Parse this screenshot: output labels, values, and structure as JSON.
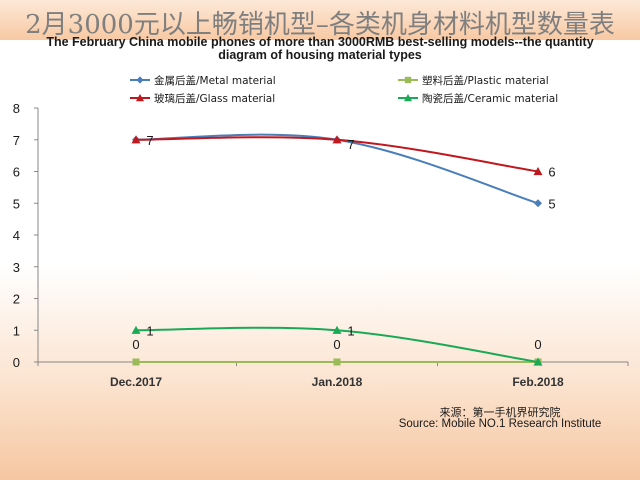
{
  "header": {
    "title": "2月3000元以上畅销机型–各类机身材料机型数量表",
    "subtitle_line1": "The February China mobile phones of more than 3000RMB best-selling models--the quantity",
    "subtitle_line2": "diagram of housing material types"
  },
  "source": {
    "cn": "来源：第一手机界研究院",
    "en": "Source: Mobile NO.1 Research Institute"
  },
  "chart_data": {
    "type": "line",
    "categories": [
      "Dec.2017",
      "Jan.2018",
      "Feb.2018"
    ],
    "ylim": [
      0,
      8
    ],
    "yticks": [
      0,
      1,
      2,
      3,
      4,
      5,
      6,
      7,
      8
    ],
    "grid": false,
    "legend_position": "top",
    "series": [
      {
        "name": "金属后盖/Metal material",
        "values": [
          7,
          7,
          5
        ],
        "color": "#4a7ebb",
        "marker": "diamond"
      },
      {
        "name": "塑料后盖/Plastic material",
        "values": [
          0,
          0,
          0
        ],
        "color": "#9bbb59",
        "marker": "square"
      },
      {
        "name": "玻璃后盖/Glass material",
        "values": [
          7,
          7,
          6
        ],
        "color": "#c0181f",
        "marker": "triangle"
      },
      {
        "name": "陶瓷后盖/Ceramic material",
        "values": [
          1,
          1,
          0
        ],
        "color": "#1aaa55",
        "marker": "triangle"
      }
    ]
  }
}
